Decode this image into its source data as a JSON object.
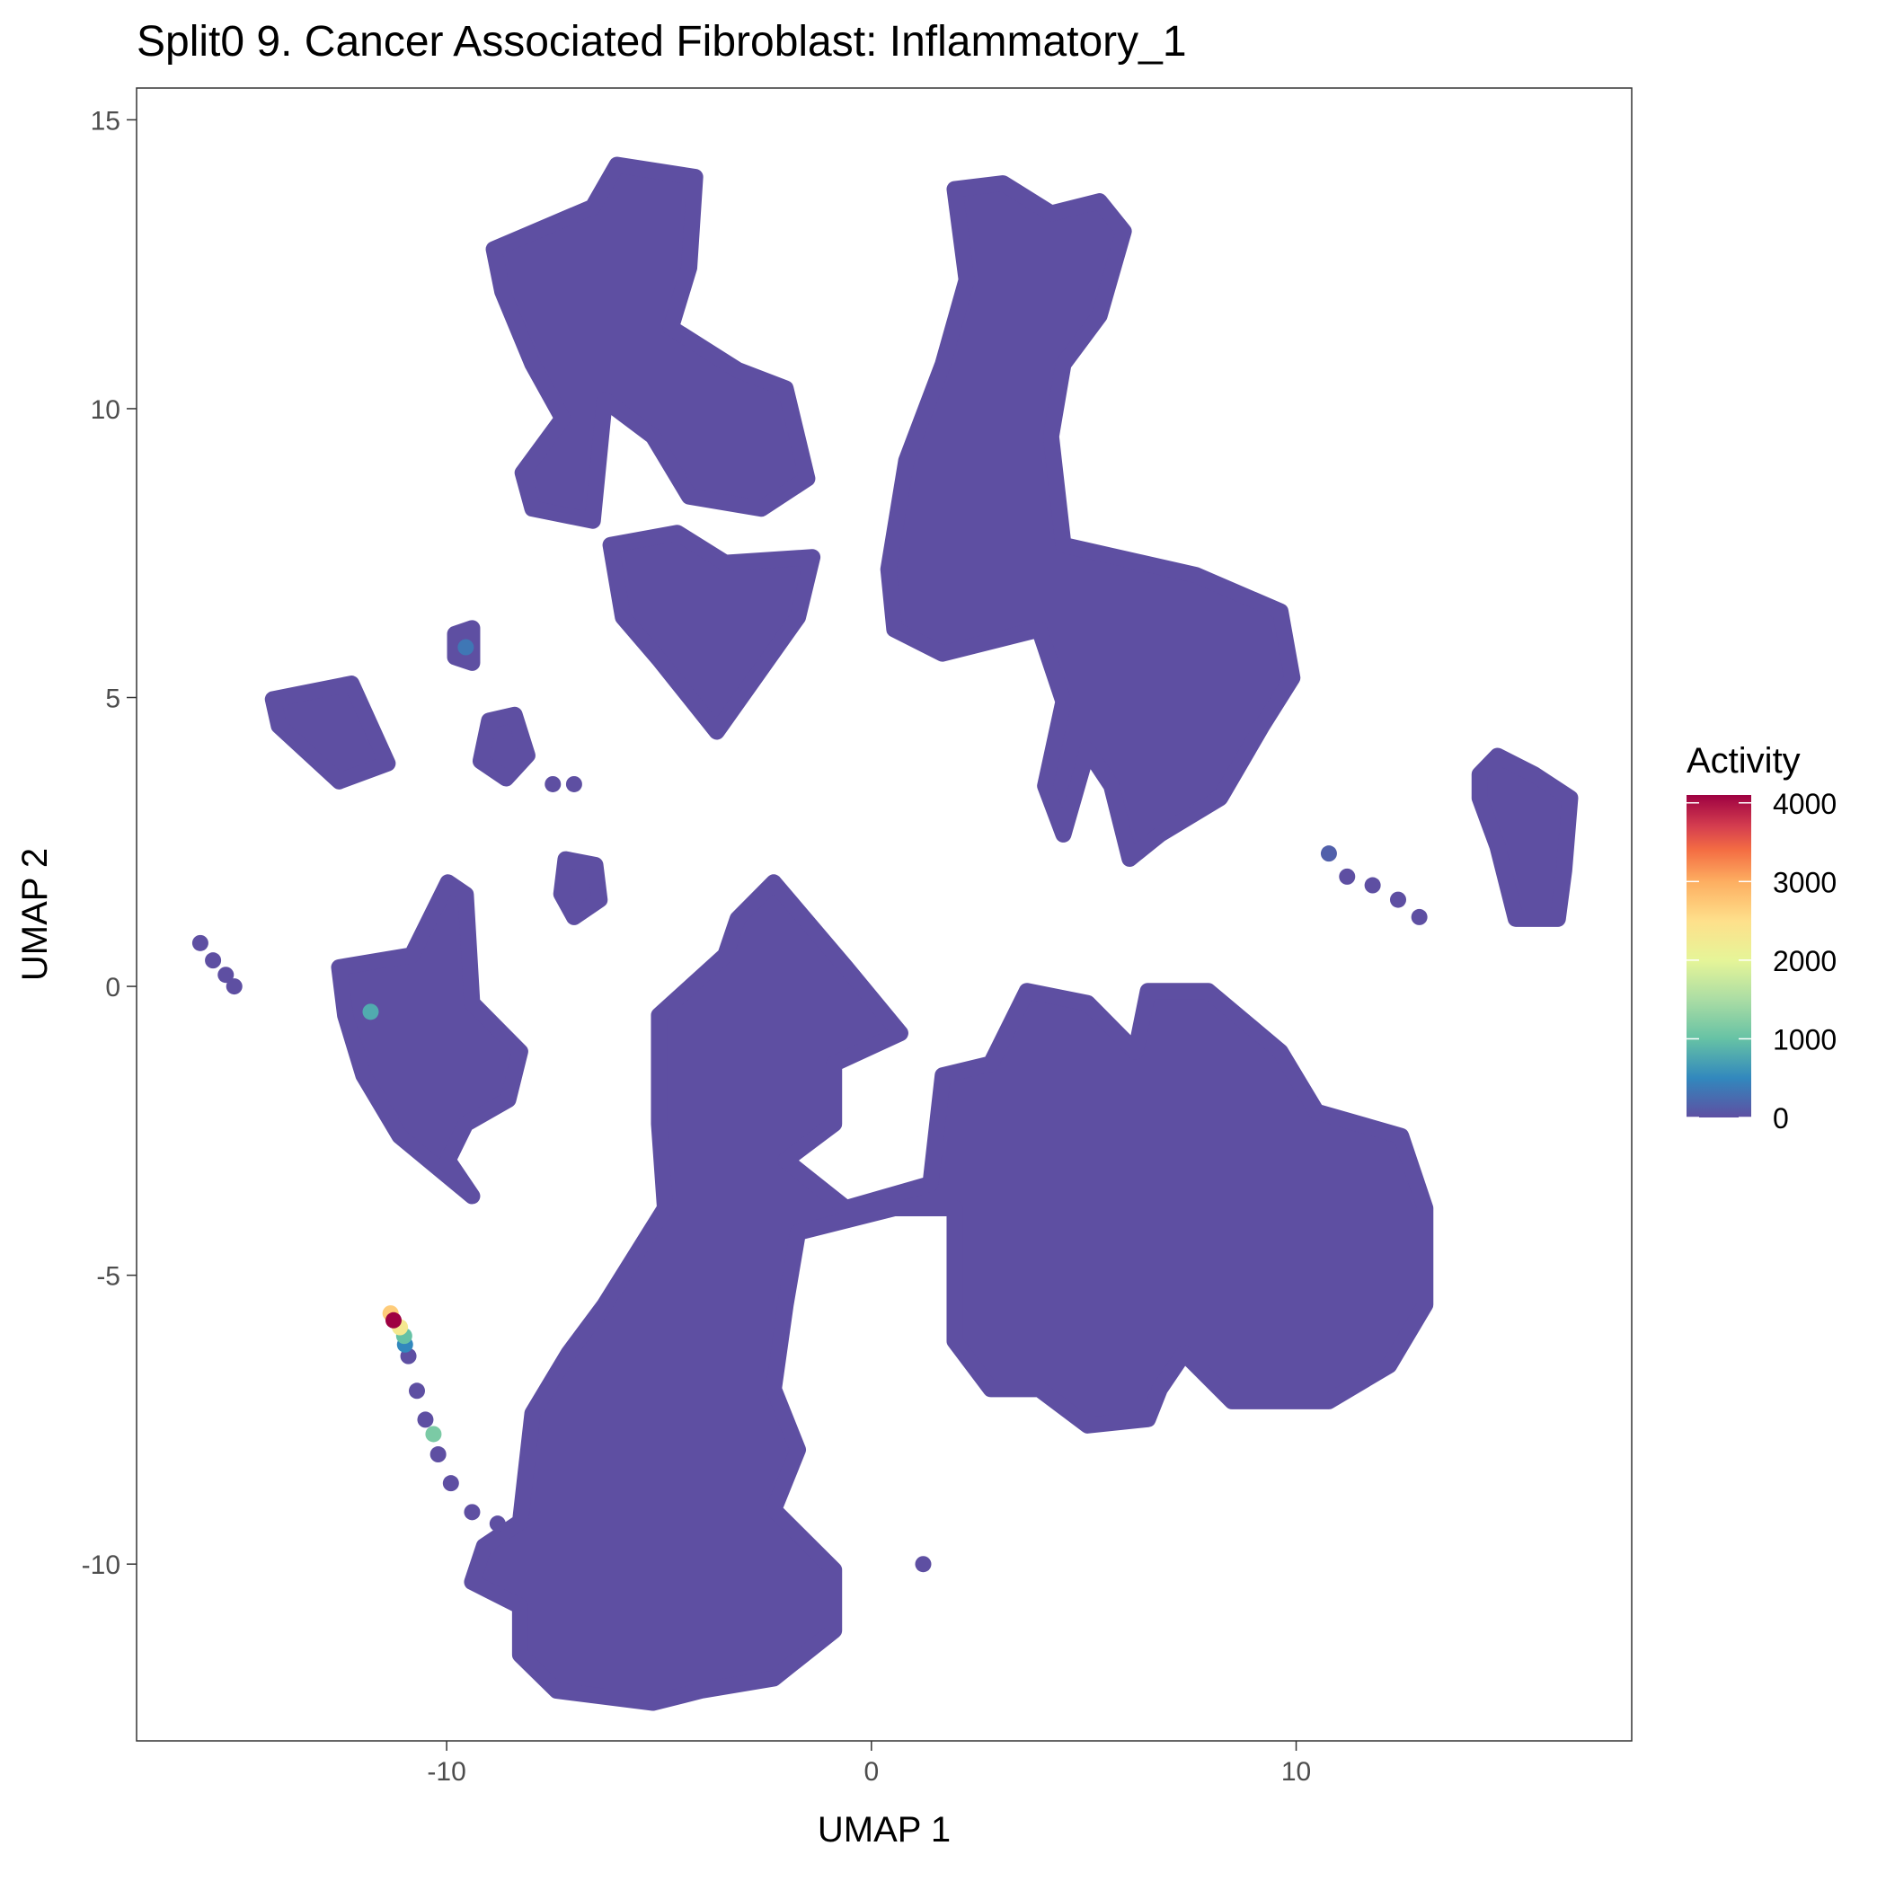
{
  "chart_data": {
    "type": "scatter",
    "title": "Split0 9. Cancer Associated Fibroblast: Inflammatory_1",
    "xlabel": "UMAP 1",
    "ylabel": "UMAP 2",
    "xlim": [
      -17.3,
      17.9
    ],
    "ylim": [
      -13.06,
      15.55
    ],
    "xticks": [
      -10,
      0,
      10
    ],
    "xtick_labels": [
      "-10",
      "0",
      "10"
    ],
    "yticks": [
      -10,
      -5,
      0,
      5,
      10,
      15
    ],
    "ytick_labels": [
      "-10",
      "-5",
      "0",
      "5",
      "10",
      "15"
    ],
    "grid": false,
    "base_color": "#5E4FA2",
    "legend": {
      "title": "Activity",
      "position": "right",
      "range": [
        0,
        4100
      ],
      "ticks": [
        0,
        1000,
        2000,
        3000,
        4000
      ],
      "tick_labels": [
        "0",
        "1000",
        "2000",
        "3000",
        "4000"
      ],
      "palette": [
        {
          "value": 0,
          "color": "#5E4FA2"
        },
        {
          "value": 500,
          "color": "#3288BD"
        },
        {
          "value": 1000,
          "color": "#66C2A5"
        },
        {
          "value": 1500,
          "color": "#ABDDA4"
        },
        {
          "value": 2000,
          "color": "#E6F598"
        },
        {
          "value": 2500,
          "color": "#FEE08B"
        },
        {
          "value": 3000,
          "color": "#FDAE61"
        },
        {
          "value": 3400,
          "color": "#F46D43"
        },
        {
          "value": 3700,
          "color": "#D53E4F"
        },
        {
          "value": 4100,
          "color": "#9E0142"
        }
      ]
    },
    "clusters": [
      {
        "value": 0,
        "outline": [
          [
            -8.89,
            12.76
          ],
          [
            -6.56,
            13.49
          ],
          [
            -5.99,
            14.22
          ],
          [
            -4.15,
            14.01
          ],
          [
            -4.29,
            12.44
          ],
          [
            -4.72,
            11.4
          ],
          [
            -3.15,
            10.67
          ],
          [
            -2.02,
            10.35
          ],
          [
            -1.51,
            8.79
          ],
          [
            -2.59,
            8.27
          ],
          [
            -4.29,
            8.48
          ],
          [
            -5.14,
            9.52
          ],
          [
            -6.28,
            10.15
          ],
          [
            -6.56,
            8.06
          ],
          [
            -7.98,
            8.27
          ],
          [
            -8.21,
            8.89
          ],
          [
            -7.27,
            9.83
          ],
          [
            -7.98,
            10.77
          ],
          [
            -8.69,
            12.03
          ]
        ]
      },
      {
        "value": 0,
        "outline": [
          [
            -6.14,
            7.64
          ],
          [
            -4.57,
            7.85
          ],
          [
            -3.44,
            7.33
          ],
          [
            -1.39,
            7.43
          ],
          [
            -1.73,
            6.39
          ],
          [
            -3.64,
            4.41
          ],
          [
            -5.0,
            5.66
          ],
          [
            -5.85,
            6.39
          ]
        ]
      },
      {
        "value": 0,
        "outline": [
          [
            1.96,
            13.8
          ],
          [
            3.1,
            13.9
          ],
          [
            4.23,
            13.38
          ],
          [
            5.37,
            13.59
          ],
          [
            5.94,
            13.07
          ],
          [
            5.37,
            11.61
          ],
          [
            4.52,
            10.77
          ],
          [
            4.23,
            9.52
          ],
          [
            4.52,
            7.64
          ],
          [
            7.64,
            7.12
          ],
          [
            9.63,
            6.49
          ],
          [
            9.91,
            5.34
          ],
          [
            9.2,
            4.51
          ],
          [
            8.21,
            3.26
          ],
          [
            6.79,
            2.63
          ],
          [
            6.08,
            2.21
          ],
          [
            5.65,
            3.47
          ],
          [
            5.09,
            4.09
          ],
          [
            4.52,
            2.63
          ],
          [
            4.09,
            3.47
          ],
          [
            4.52,
            4.93
          ],
          [
            3.95,
            6.18
          ],
          [
            1.67,
            5.76
          ],
          [
            0.54,
            6.18
          ],
          [
            0.4,
            7.22
          ],
          [
            0.82,
            9.1
          ],
          [
            1.68,
            10.77
          ],
          [
            2.24,
            12.23
          ]
        ]
      },
      {
        "value": 0,
        "outline": [
          [
            -5.0,
            -0.5
          ],
          [
            -3.44,
            0.54
          ],
          [
            -3.15,
            1.17
          ],
          [
            -2.3,
            1.8
          ],
          [
            -0.6,
            0.33
          ],
          [
            0.68,
            -0.81
          ],
          [
            -0.88,
            -1.34
          ],
          [
            -0.88,
            -2.38
          ],
          [
            -2.02,
            -3.01
          ],
          [
            -0.6,
            -3.84
          ],
          [
            1.39,
            -3.42
          ],
          [
            1.68,
            -1.54
          ],
          [
            2.81,
            -1.34
          ],
          [
            3.66,
            -0.08
          ],
          [
            5.09,
            -0.29
          ],
          [
            6.22,
            -1.13
          ],
          [
            6.51,
            -0.08
          ],
          [
            7.93,
            -0.08
          ],
          [
            9.63,
            -1.13
          ],
          [
            10.48,
            -2.17
          ],
          [
            12.47,
            -2.59
          ],
          [
            13.04,
            -3.84
          ],
          [
            13.04,
            -5.51
          ],
          [
            12.19,
            -6.56
          ],
          [
            10.77,
            -7.18
          ],
          [
            8.49,
            -7.18
          ],
          [
            7.36,
            -6.35
          ],
          [
            6.79,
            -6.97
          ],
          [
            6.51,
            -7.49
          ],
          [
            5.09,
            -7.6
          ],
          [
            3.95,
            -6.97
          ],
          [
            2.81,
            -6.97
          ],
          [
            1.96,
            -6.14
          ],
          [
            1.96,
            -3.84
          ],
          [
            0.54,
            -3.84
          ],
          [
            -1.73,
            -4.26
          ],
          [
            -2.02,
            -5.51
          ],
          [
            -2.3,
            -6.97
          ],
          [
            -1.73,
            -8.02
          ],
          [
            -2.3,
            -9.06
          ],
          [
            -0.88,
            -10.1
          ],
          [
            -0.88,
            -11.15
          ],
          [
            -2.3,
            -11.98
          ],
          [
            -4.01,
            -12.19
          ],
          [
            -5.14,
            -12.4
          ],
          [
            -7.41,
            -12.19
          ],
          [
            -8.27,
            -11.57
          ],
          [
            -8.27,
            -10.73
          ],
          [
            -9.4,
            -10.31
          ],
          [
            -9.12,
            -9.69
          ],
          [
            -8.27,
            -9.27
          ],
          [
            -7.98,
            -7.39
          ],
          [
            -7.13,
            -6.35
          ],
          [
            -6.28,
            -5.51
          ],
          [
            -4.86,
            -3.84
          ],
          [
            -5.0,
            -2.38
          ]
        ]
      },
      {
        "value": 0,
        "outline": [
          [
            -12.53,
            0.33
          ],
          [
            -10.82,
            0.54
          ],
          [
            -9.97,
            1.8
          ],
          [
            -9.55,
            1.59
          ],
          [
            -9.4,
            -0.29
          ],
          [
            -8.27,
            -1.13
          ],
          [
            -8.55,
            -1.96
          ],
          [
            -9.55,
            -2.38
          ],
          [
            -9.97,
            -3.01
          ],
          [
            -9.4,
            -3.63
          ],
          [
            -11.11,
            -2.59
          ],
          [
            -11.96,
            -1.54
          ],
          [
            -12.39,
            -0.5
          ]
        ]
      },
      {
        "value": 0,
        "outline": [
          [
            -14.09,
            4.97
          ],
          [
            -12.24,
            5.24
          ],
          [
            -11.39,
            3.86
          ],
          [
            -12.53,
            3.55
          ],
          [
            -13.95,
            4.51
          ]
        ]
      },
      {
        "value": 0,
        "outline": [
          [
            14.32,
            3.67
          ],
          [
            14.74,
            3.99
          ],
          [
            15.6,
            3.67
          ],
          [
            16.45,
            3.26
          ],
          [
            16.31,
            2.01
          ],
          [
            16.16,
            1.17
          ],
          [
            15.17,
            1.17
          ],
          [
            14.74,
            2.42
          ],
          [
            14.32,
            3.26
          ]
        ]
      },
      {
        "value": 0,
        "outline": [
          [
            -9.0,
            4.6
          ],
          [
            -8.4,
            4.7
          ],
          [
            -8.1,
            4.0
          ],
          [
            -8.6,
            3.6
          ],
          [
            -9.2,
            3.9
          ]
        ]
      },
      {
        "value": 0,
        "outline": [
          [
            -7.2,
            2.2
          ],
          [
            -6.5,
            2.1
          ],
          [
            -6.4,
            1.5
          ],
          [
            -7.0,
            1.2
          ],
          [
            -7.3,
            1.6
          ]
        ]
      },
      {
        "value": 0,
        "outline": [
          [
            -9.8,
            6.1
          ],
          [
            -9.4,
            6.2
          ],
          [
            -9.4,
            5.6
          ],
          [
            -9.8,
            5.7
          ]
        ]
      }
    ],
    "points": [
      {
        "x": -15.8,
        "y": 0.75,
        "value": 0
      },
      {
        "x": -15.5,
        "y": 0.45,
        "value": 0
      },
      {
        "x": -15.2,
        "y": 0.2,
        "value": 0
      },
      {
        "x": -15.0,
        "y": 0.0,
        "value": 0
      },
      {
        "x": 10.77,
        "y": 2.3,
        "value": 150
      },
      {
        "x": 11.2,
        "y": 1.9,
        "value": 0
      },
      {
        "x": 11.8,
        "y": 1.75,
        "value": 0
      },
      {
        "x": 12.4,
        "y": 1.5,
        "value": 0
      },
      {
        "x": 12.9,
        "y": 1.2,
        "value": 0
      },
      {
        "x": -7.5,
        "y": 3.5,
        "value": 0
      },
      {
        "x": -7.0,
        "y": 3.5,
        "value": 0
      },
      {
        "x": 1.22,
        "y": -10.0,
        "value": 0
      },
      {
        "x": -10.9,
        "y": -6.4,
        "value": 0
      },
      {
        "x": -10.7,
        "y": -7.0,
        "value": 0
      },
      {
        "x": -10.5,
        "y": -7.5,
        "value": 0
      },
      {
        "x": -10.2,
        "y": -8.1,
        "value": 0
      },
      {
        "x": -9.9,
        "y": -8.6,
        "value": 0
      },
      {
        "x": -9.4,
        "y": -9.1,
        "value": 0
      },
      {
        "x": -8.8,
        "y": -9.3,
        "value": 0
      },
      {
        "x": -9.55,
        "y": 5.87,
        "value": 350
      },
      {
        "x": -11.79,
        "y": -0.44,
        "value": 800
      },
      {
        "x": -10.31,
        "y": -7.75,
        "value": 1150
      },
      {
        "x": -10.98,
        "y": -6.2,
        "value": 500
      },
      {
        "x": -11.0,
        "y": -6.05,
        "value": 1000
      },
      {
        "x": -11.1,
        "y": -5.9,
        "value": 2300
      },
      {
        "x": -11.32,
        "y": -5.66,
        "value": 2700
      },
      {
        "x": -11.25,
        "y": -5.78,
        "value": 4100
      }
    ]
  }
}
